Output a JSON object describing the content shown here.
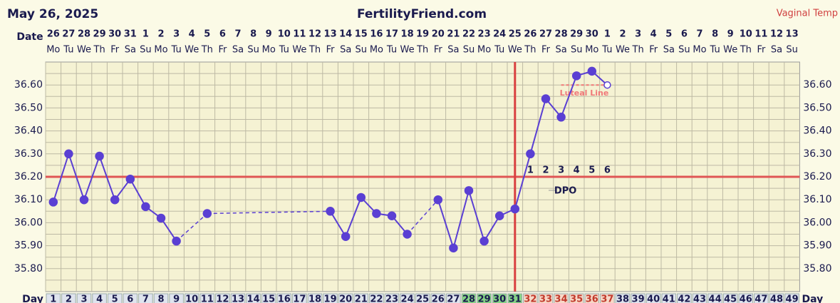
{
  "chart_data": {
    "type": "line",
    "title": "FertilityFriend.com",
    "subtitle": "May 26, 2025",
    "temp_label": "Vaginal Temp",
    "date_label": "Date",
    "day_label": "Day",
    "dates": [
      26,
      27,
      28,
      29,
      30,
      31,
      1,
      2,
      3,
      4,
      5,
      6,
      7,
      8,
      9,
      10,
      11,
      12,
      13,
      14,
      15,
      16,
      17,
      18,
      19,
      20,
      21,
      22,
      23,
      24,
      25,
      26,
      27,
      28,
      29,
      30,
      1,
      2,
      3,
      4,
      5,
      6,
      7,
      8,
      9,
      10,
      11,
      12,
      13
    ],
    "weekdays": [
      "Mo",
      "Tu",
      "We",
      "Th",
      "Fr",
      "Sa",
      "Su",
      "Mo",
      "Tu",
      "We",
      "Th",
      "Fr",
      "Sa",
      "Su",
      "Mo",
      "Tu",
      "We",
      "Th",
      "Fr",
      "Sa",
      "Su",
      "Mo",
      "Tu",
      "We",
      "Th",
      "Fr",
      "Sa",
      "Su",
      "Mo",
      "Tu",
      "We",
      "Th",
      "Fr",
      "Sa",
      "Su",
      "Mo",
      "Tu",
      "We",
      "Th",
      "Fr",
      "Sa",
      "Su",
      "Mo",
      "Tu",
      "We",
      "Th",
      "Fr",
      "Sa",
      "Su"
    ],
    "categories": [
      1,
      2,
      3,
      4,
      5,
      6,
      7,
      8,
      9,
      10,
      11,
      12,
      13,
      14,
      15,
      16,
      17,
      18,
      19,
      20,
      21,
      22,
      23,
      24,
      25,
      26,
      27,
      28,
      29,
      30,
      31,
      32,
      33,
      34,
      35,
      36,
      37,
      38,
      39,
      40,
      41,
      42,
      43,
      44,
      45,
      46,
      47,
      48,
      49
    ],
    "series": [
      {
        "color": "#5a3fd3",
        "values": [
          36.09,
          36.3,
          36.1,
          36.29,
          36.1,
          36.19,
          36.07,
          36.02,
          35.92,
          null,
          36.04,
          null,
          null,
          null,
          null,
          null,
          null,
          null,
          36.05,
          35.94,
          36.11,
          36.04,
          36.03,
          35.95,
          null,
          36.1,
          35.89,
          36.14,
          35.92,
          36.03,
          36.06,
          36.3,
          36.54,
          36.46,
          36.64,
          36.66,
          36.6,
          null,
          null,
          null,
          null,
          null,
          null,
          null,
          null,
          null,
          null,
          null,
          null
        ]
      }
    ],
    "open_point_day": 37,
    "ylim": [
      35.7,
      36.7
    ],
    "yticks": [
      {
        "value": 35.8,
        "label": "35.80"
      },
      {
        "value": 35.9,
        "label": "35.90"
      },
      {
        "value": 36.0,
        "label": "36.00"
      },
      {
        "value": 36.1,
        "label": "36.10"
      },
      {
        "value": 36.2,
        "label": "36.20"
      },
      {
        "value": 36.3,
        "label": "36.30"
      },
      {
        "value": 36.4,
        "label": "36.40"
      },
      {
        "value": 36.5,
        "label": "36.50"
      },
      {
        "value": 36.6,
        "label": "36.60"
      }
    ],
    "yticks_minor": [
      35.75,
      35.85,
      35.95,
      36.05,
      36.15,
      36.25,
      36.35,
      36.45,
      36.55,
      36.65
    ],
    "grid": true,
    "coverline": 36.2,
    "coverline_color": "#e05555",
    "ovulation_day": 31,
    "ovulation_color": "#d94040",
    "dpo": [
      1,
      2,
      3,
      4,
      5,
      6
    ],
    "dpo_label": "DPO",
    "luteal_line": {
      "label": "Luteal Line",
      "value": 36.6,
      "from_day": 34,
      "to_day": 37,
      "color": "#f07878"
    },
    "fertile_days": [
      28,
      31
    ],
    "fertile_color": "#86d486",
    "dpo_cell_color": "#f8d8c8",
    "day_cell_color": "#dfe4ee"
  }
}
